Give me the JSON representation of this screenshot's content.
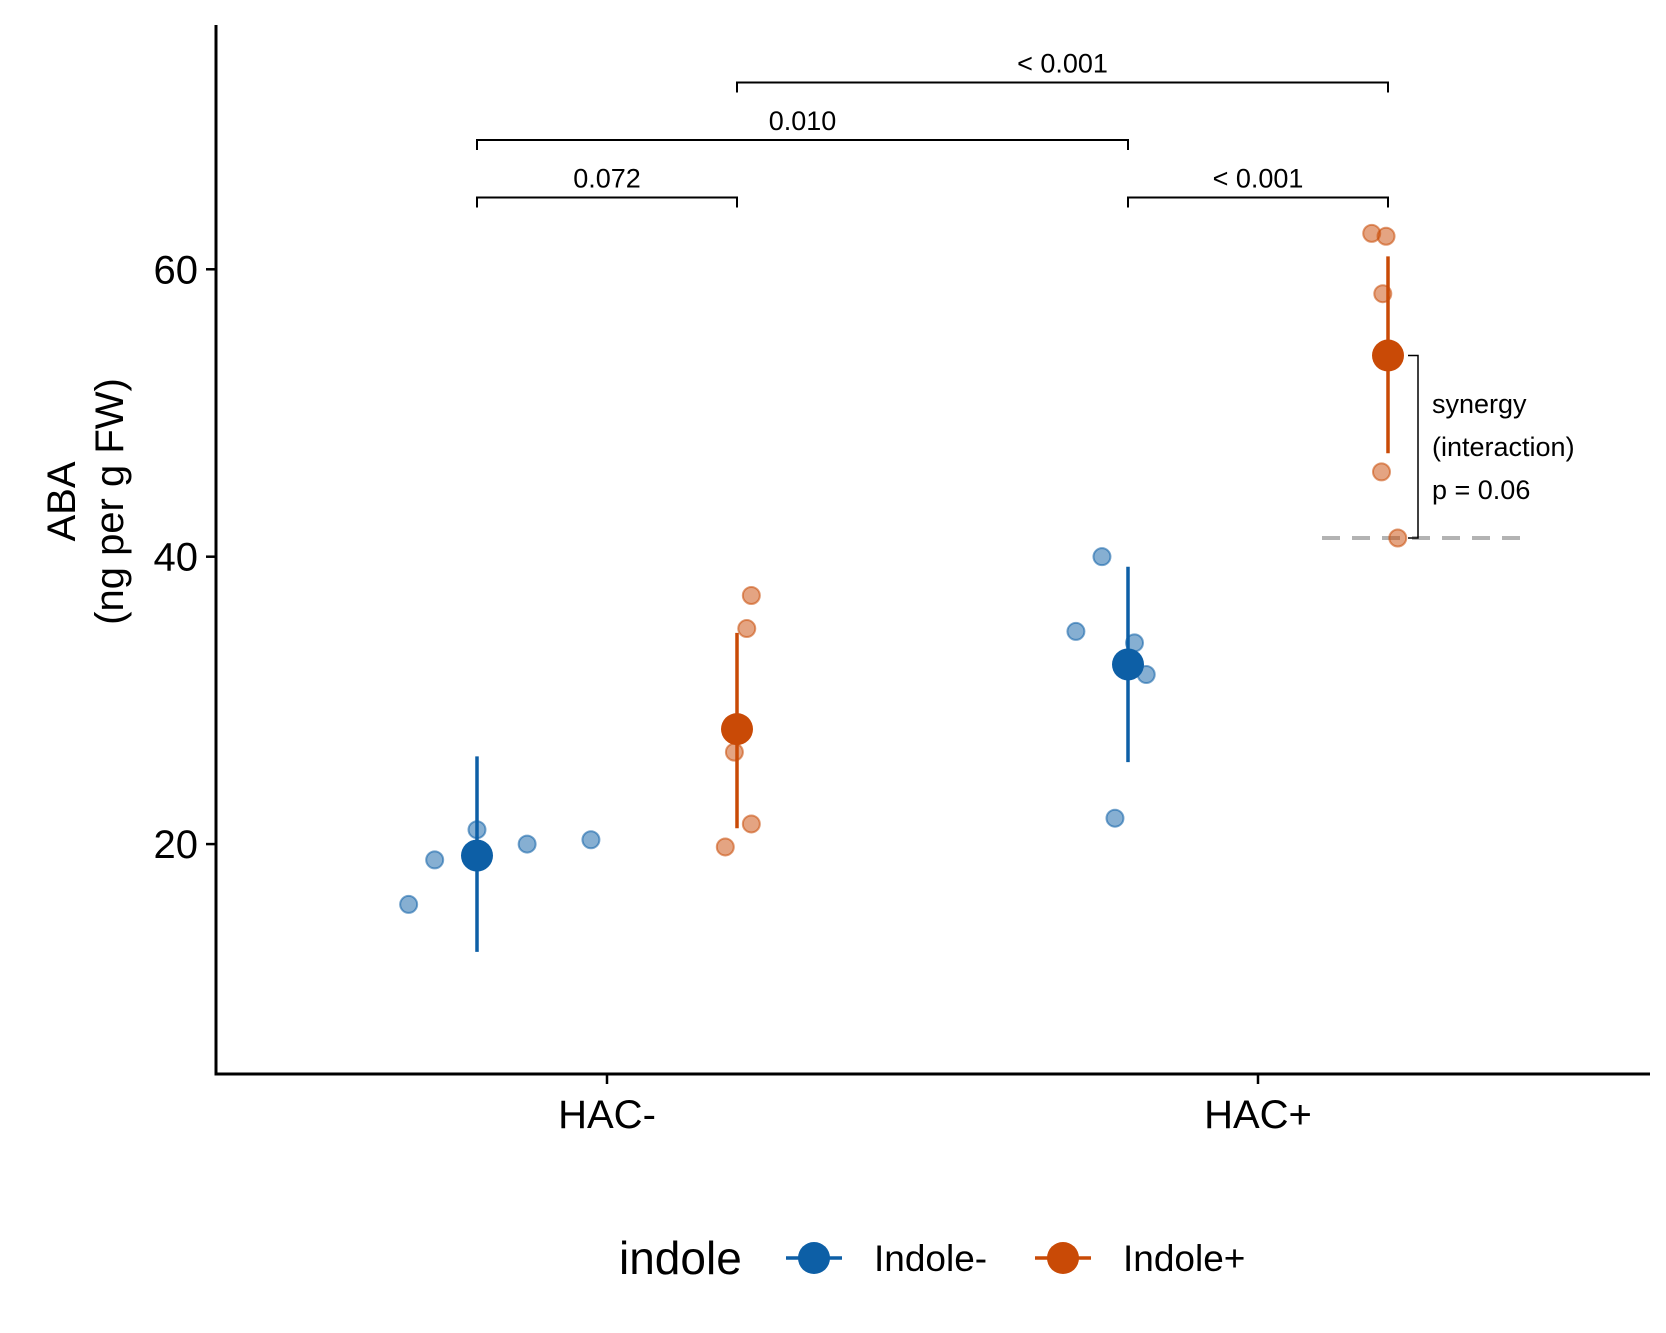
{
  "chart_data": {
    "type": "scatter",
    "xlabel": "",
    "ylabel_line1": "ABA",
    "ylabel_line2": "(ng per g FW)",
    "ylim": [
      4,
      77
    ],
    "yticks": [
      20,
      40,
      60
    ],
    "categories": [
      "HAC-",
      "HAC+"
    ],
    "legend": {
      "title": "indole",
      "placement": "bottom",
      "entries": [
        "Indole-",
        "Indole+"
      ]
    },
    "colors": {
      "Indole-": "#0d5fa6",
      "Indole+": "#c94a06",
      "reference_line": "#b3b3b3"
    },
    "series": [
      {
        "name": "Indole-",
        "groups": [
          {
            "category": "HAC-",
            "mean": 19.2,
            "error": [
              12.5,
              26.1
            ],
            "points": [
              {
                "offset": -0.105,
                "y": 15.8
              },
              {
                "offset": -0.065,
                "y": 18.9
              },
              {
                "offset": 0.0,
                "y": 21.0
              },
              {
                "offset": 0.077,
                "y": 20.0
              },
              {
                "offset": 0.175,
                "y": 20.3
              }
            ]
          },
          {
            "category": "HAC+",
            "mean": 32.5,
            "error": [
              25.7,
              39.3
            ],
            "points": [
              {
                "offset": -0.08,
                "y": 34.8
              },
              {
                "offset": -0.04,
                "y": 40.0
              },
              {
                "offset": 0.01,
                "y": 34.0
              },
              {
                "offset": 0.028,
                "y": 31.8
              },
              {
                "offset": -0.02,
                "y": 21.8
              }
            ]
          }
        ]
      },
      {
        "name": "Indole+",
        "groups": [
          {
            "category": "HAC-",
            "mean": 28.0,
            "error": [
              21.1,
              34.7
            ],
            "points": [
              {
                "offset": 0.022,
                "y": 37.3
              },
              {
                "offset": 0.015,
                "y": 35.0
              },
              {
                "offset": -0.004,
                "y": 26.4
              },
              {
                "offset": 0.022,
                "y": 21.4
              },
              {
                "offset": -0.018,
                "y": 19.8
              }
            ]
          },
          {
            "category": "HAC+",
            "mean": 54.0,
            "error": [
              47.2,
              60.9
            ],
            "points": [
              {
                "offset": -0.025,
                "y": 62.5
              },
              {
                "offset": -0.003,
                "y": 62.3
              },
              {
                "offset": -0.008,
                "y": 58.3
              },
              {
                "offset": -0.01,
                "y": 45.9
              },
              {
                "offset": 0.015,
                "y": 41.3
              }
            ]
          }
        ]
      }
    ],
    "comparisons": [
      {
        "label": "0.072",
        "from": {
          "category": "HAC-",
          "series": "Indole-"
        },
        "to": {
          "category": "HAC-",
          "series": "Indole+"
        },
        "y": 65
      },
      {
        "label": "< 0.001",
        "from": {
          "category": "HAC+",
          "series": "Indole-"
        },
        "to": {
          "category": "HAC+",
          "series": "Indole+"
        },
        "y": 65
      },
      {
        "label": "0.010",
        "from": {
          "category": "HAC-",
          "series": "Indole-"
        },
        "to": {
          "category": "HAC+",
          "series": "Indole-"
        },
        "y": 69
      },
      {
        "label": "< 0.001",
        "from": {
          "category": "HAC-",
          "series": "Indole+"
        },
        "to": {
          "category": "HAC+",
          "series": "Indole+"
        },
        "y": 73
      }
    ],
    "synergy": {
      "lines": [
        "synergy",
        "(interaction)",
        "p = 0.06"
      ],
      "reference_y": 41.3,
      "mean_y": 54.0
    }
  }
}
